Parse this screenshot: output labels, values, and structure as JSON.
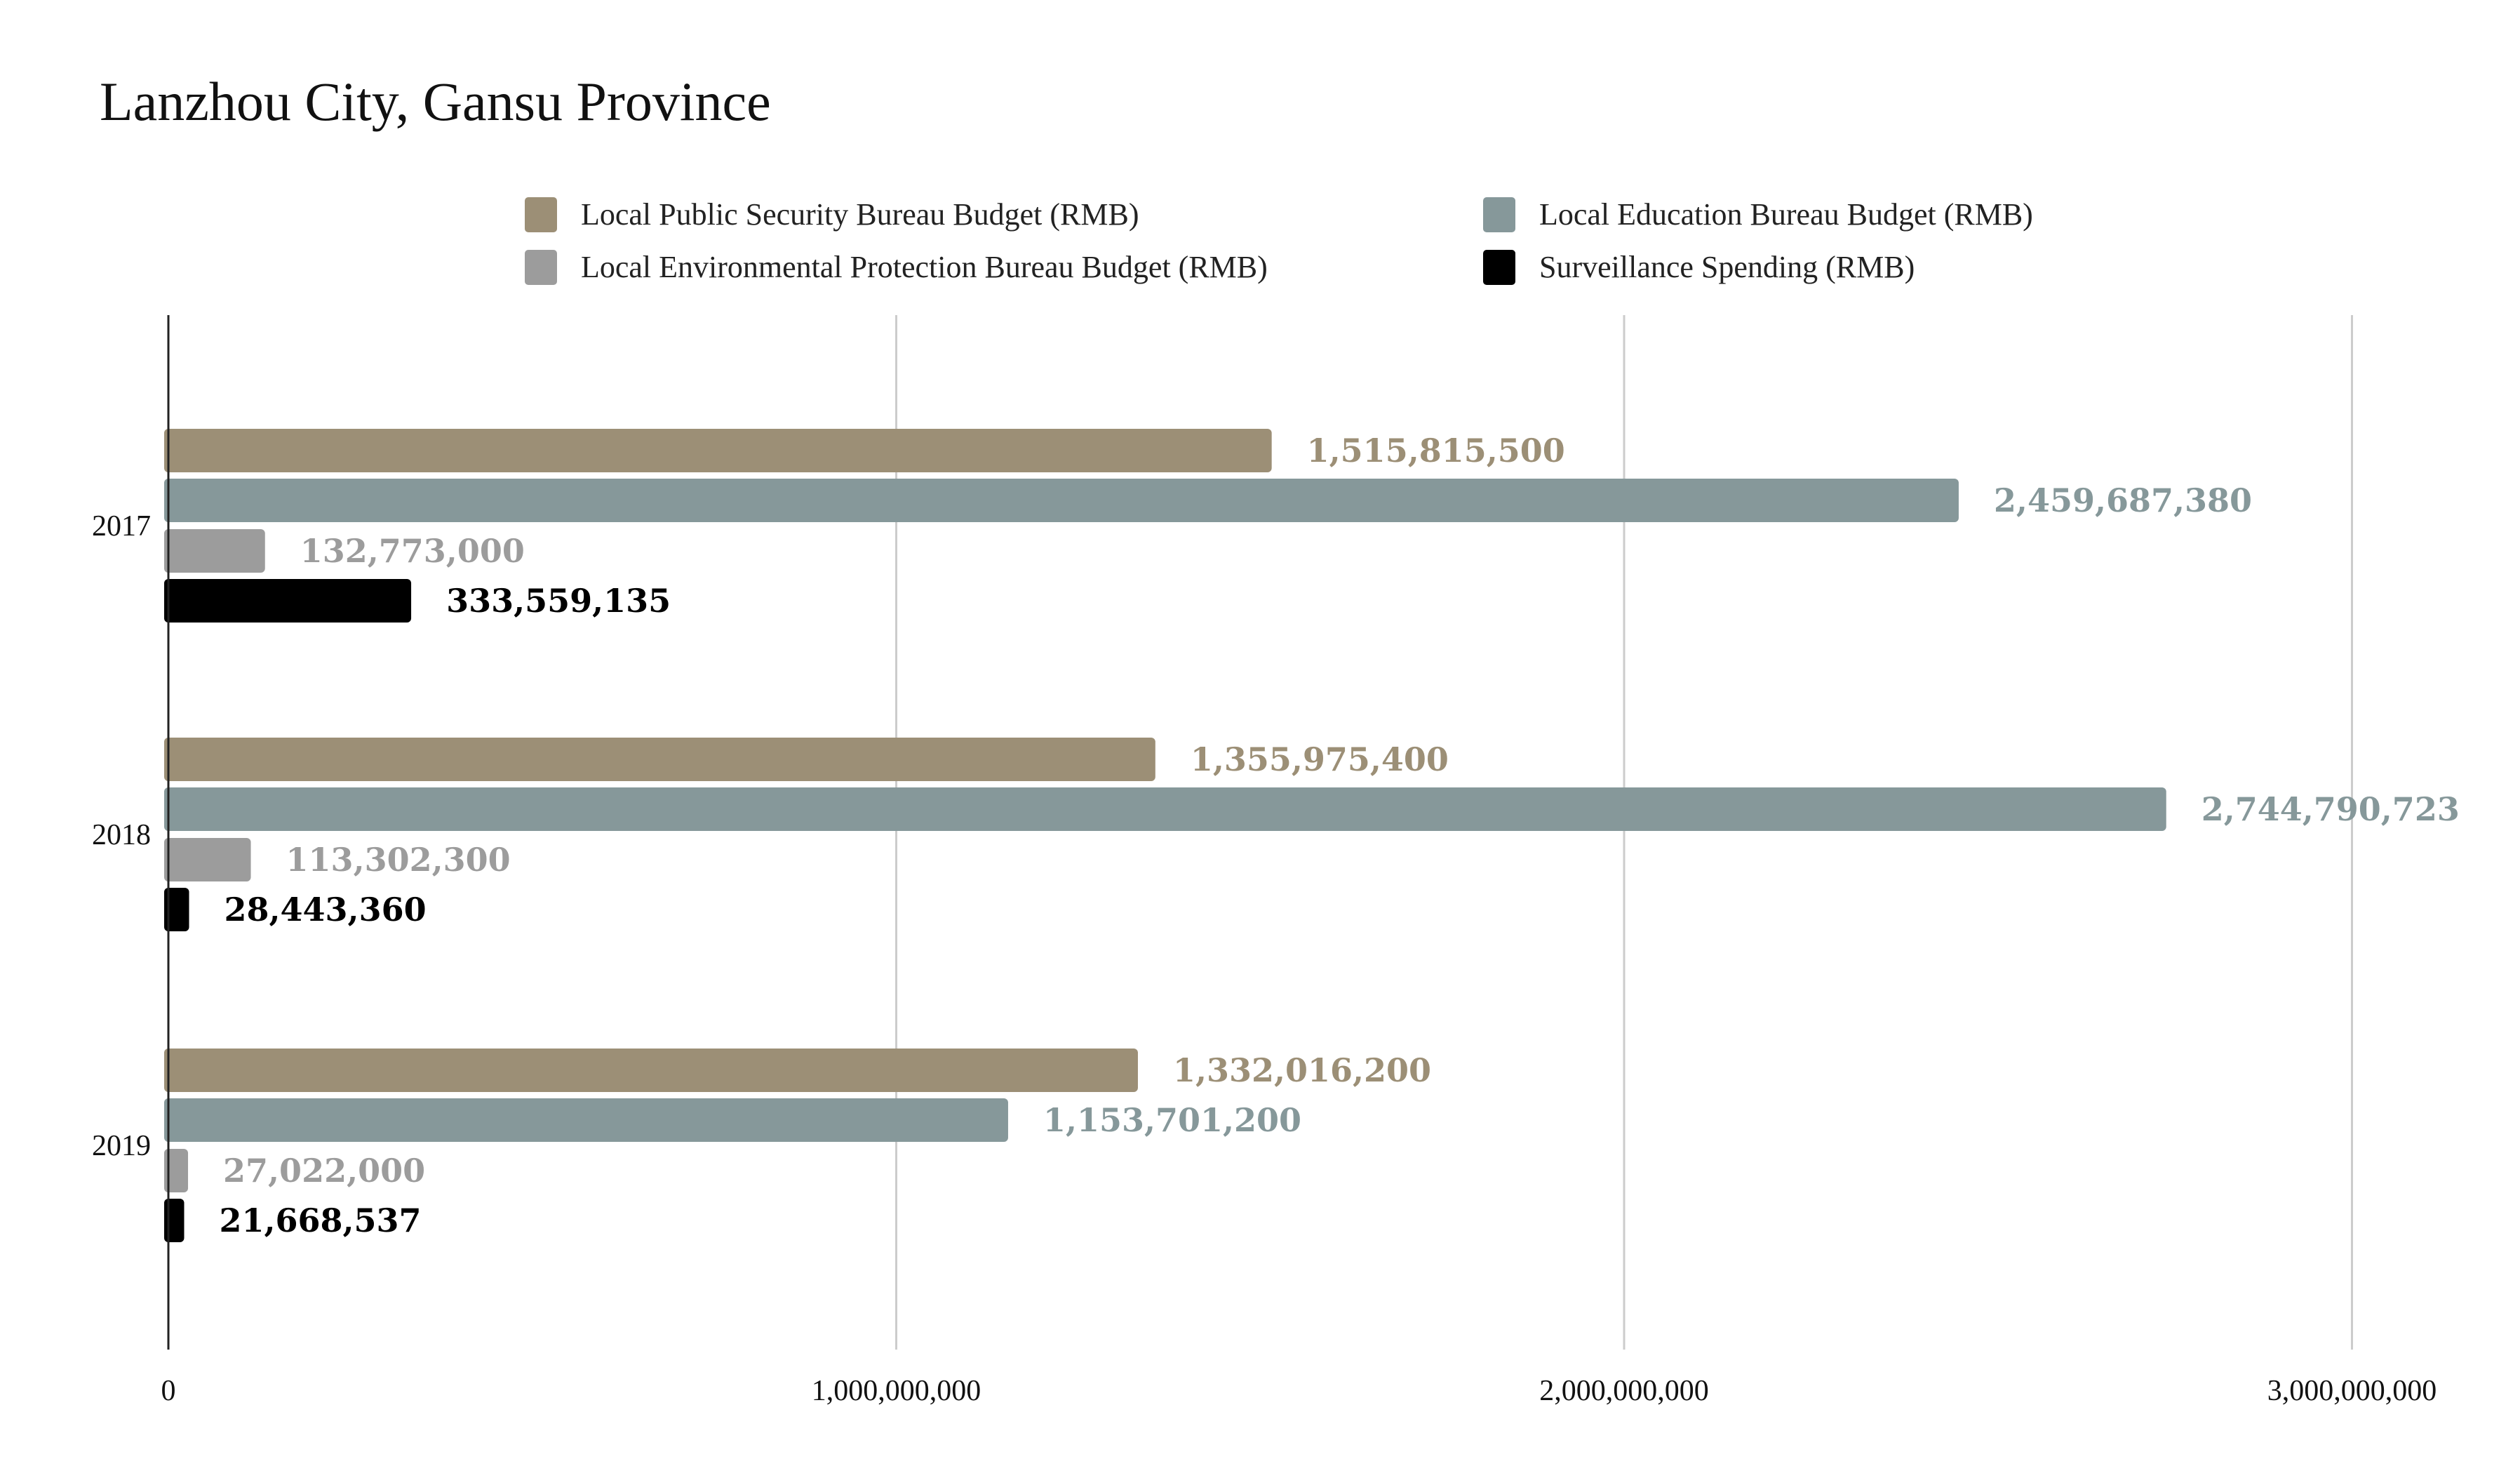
{
  "chart_data": {
    "type": "bar",
    "orientation": "horizontal",
    "title": "Lanzhou City, Gansu Province",
    "categories": [
      "2017",
      "2018",
      "2019"
    ],
    "series": [
      {
        "name": "Local Public Security Bureau Budget (RMB)",
        "color": "#9c8f76",
        "values": [
          1515815500,
          1355975400,
          1332016200
        ],
        "labels": [
          "1,515,815,500",
          "1,355,975,400",
          "1,332,016,200"
        ]
      },
      {
        "name": "Local Education Bureau Budget (RMB)",
        "color": "#86989a",
        "values": [
          2459687380,
          2744790723,
          1153701200
        ],
        "labels": [
          "2,459,687,380",
          "2,744,790,723",
          "1,153,701,200"
        ]
      },
      {
        "name": "Local Environmental Protection Bureau Budget (RMB)",
        "color": "#9c9c9c",
        "values": [
          132773000,
          113302300,
          27022000
        ],
        "labels": [
          "132,773,000",
          "113,302,300",
          "27,022,000"
        ]
      },
      {
        "name": "Surveillance Spending (RMB)",
        "color": "#000000",
        "values": [
          333559135,
          28443360,
          21668537
        ],
        "labels": [
          "333,559,135",
          "28,443,360",
          "21,668,537"
        ]
      }
    ],
    "xticks": [
      "0",
      "1,000,000,000",
      "2,000,000,000",
      "3,000,000,000"
    ],
    "xtick_values": [
      0,
      1000000000,
      2000000000,
      3000000000
    ],
    "xlim": [
      0,
      3100000000
    ],
    "grid": true,
    "legend_placement": "top"
  }
}
